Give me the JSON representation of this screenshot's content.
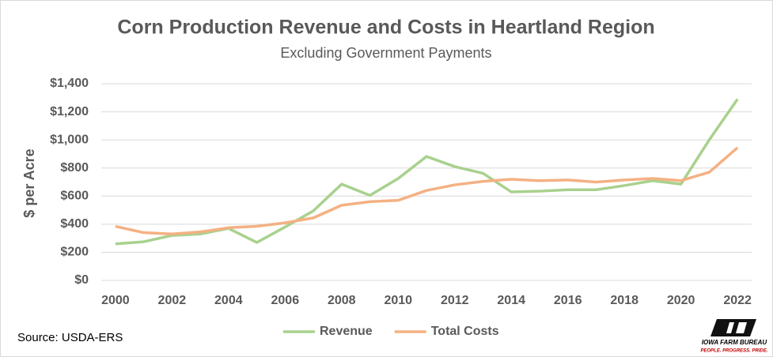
{
  "chart_data": {
    "type": "line",
    "title": "Corn Production Revenue and Costs in Heartland Region",
    "subtitle": "Excluding Government Payments",
    "y_label": "$ per Acre",
    "source": "Source: USDA-ERS",
    "x": [
      2000,
      2001,
      2002,
      2003,
      2004,
      2005,
      2006,
      2007,
      2008,
      2009,
      2010,
      2011,
      2012,
      2013,
      2014,
      2015,
      2016,
      2017,
      2018,
      2019,
      2020,
      2021,
      2022
    ],
    "series": [
      {
        "name": "Revenue",
        "color": "#a9d18e",
        "values": [
          260,
          275,
          320,
          330,
          370,
          270,
          380,
          495,
          685,
          605,
          725,
          882,
          810,
          762,
          630,
          635,
          645,
          645,
          675,
          710,
          685,
          1000,
          1290
        ]
      },
      {
        "name": "Total Costs",
        "color": "#f4b183",
        "values": [
          385,
          340,
          330,
          345,
          375,
          385,
          410,
          445,
          535,
          560,
          570,
          640,
          680,
          705,
          720,
          710,
          715,
          700,
          715,
          725,
          710,
          770,
          945
        ]
      }
    ],
    "xlim": [
      1999.5,
      2022.5
    ],
    "xticks": [
      2000,
      2002,
      2004,
      2006,
      2008,
      2010,
      2012,
      2014,
      2016,
      2018,
      2020,
      2022
    ],
    "ylim": [
      0,
      1400
    ],
    "yticks": [
      {
        "value": 0,
        "label": "$0"
      },
      {
        "value": 200,
        "label": "$200"
      },
      {
        "value": 400,
        "label": "$400"
      },
      {
        "value": 600,
        "label": "$600"
      },
      {
        "value": 800,
        "label": "$800"
      },
      {
        "value": 1000,
        "label": "$1,000"
      },
      {
        "value": 1200,
        "label": "$1,200"
      },
      {
        "value": 1400,
        "label": "$1,400"
      }
    ],
    "grid": true,
    "legend": "bottom",
    "logo_name": "IOWA FARM BUREAU",
    "logo_tagline": "PEOPLE. PROGRESS. PRIDE."
  }
}
